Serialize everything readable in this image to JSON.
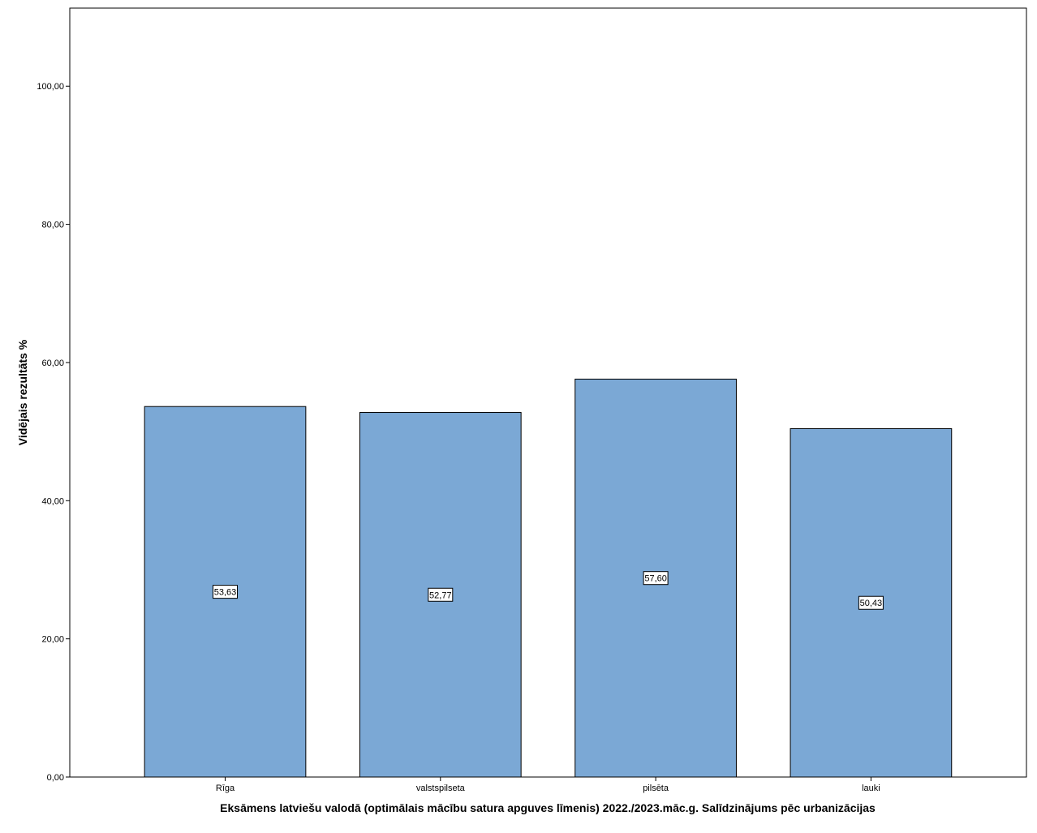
{
  "chart_data": {
    "type": "bar",
    "title": "",
    "xlabel": "Eksāmens latviešu valodā (optimālais mācību satura apguves līmenis) 2022./2023.māc.g. Salīdzinājums pēc urbanizācijas",
    "ylabel": "Vidējais rezultāts %",
    "categories": [
      "Rīga",
      "valstspilseta",
      "pilsēta",
      "lauki"
    ],
    "values": [
      53.63,
      52.77,
      57.6,
      50.43
    ],
    "data_labels": [
      "53,63",
      "52,77",
      "57,60",
      "50,43"
    ],
    "ylim": [
      0,
      111.3
    ],
    "yticks": [
      0,
      20,
      40,
      60,
      80,
      100
    ],
    "ytick_labels": [
      "0,00",
      "20,00",
      "40,00",
      "60,00",
      "80,00",
      "100,00"
    ],
    "grid": false,
    "bar_color": "#7BA8D5",
    "bar_edge_color": "#000000"
  }
}
